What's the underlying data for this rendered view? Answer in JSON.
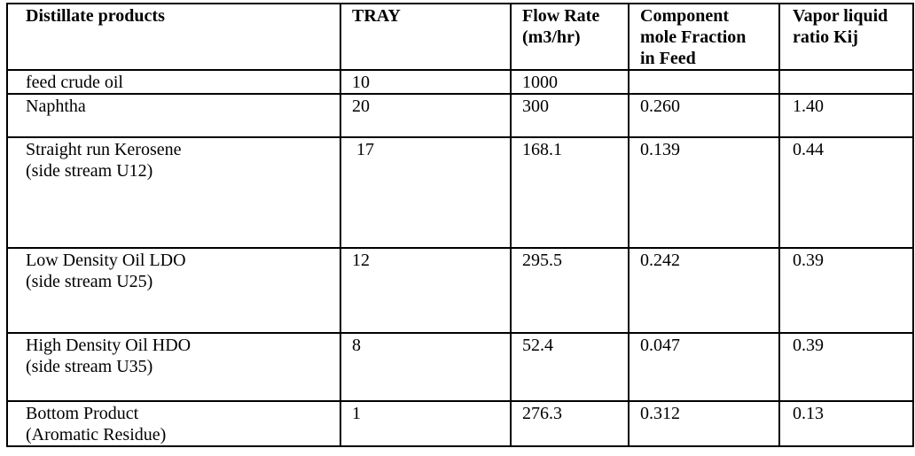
{
  "table": {
    "border_color": "#000000",
    "text_color": "#000000",
    "background_color": "#ffffff",
    "columns": [
      {
        "label": "Distillate products"
      },
      {
        "label": "TRAY"
      },
      {
        "label": "Flow Rate\n(m3/hr)"
      },
      {
        "label": "Component\nmole Fraction\nin Feed"
      },
      {
        "label": "Vapor liquid\nratio Kij"
      }
    ],
    "rows": [
      {
        "product": "feed crude oil",
        "tray": "10",
        "flow_rate": "1000",
        "mole_fraction_in_feed": "",
        "vapor_liquid_ratio_kij": ""
      },
      {
        "product": "Naphtha",
        "tray": "20",
        "flow_rate": "300",
        "mole_fraction_in_feed": "0.260",
        "vapor_liquid_ratio_kij": "1.40"
      },
      {
        "product": "Straight run Kerosene\n(side stream U12)",
        "tray": " 17",
        "flow_rate": "168.1",
        "mole_fraction_in_feed": "0.139",
        "vapor_liquid_ratio_kij": "0.44"
      },
      {
        "product": "Low Density Oil LDO\n(side stream U25)",
        "tray": "12",
        "flow_rate": "295.5",
        "mole_fraction_in_feed": "0.242",
        "vapor_liquid_ratio_kij": "0.39"
      },
      {
        "product": "High Density Oil HDO\n(side stream U35)",
        "tray": "8",
        "flow_rate": "52.4",
        "mole_fraction_in_feed": "0.047",
        "vapor_liquid_ratio_kij": "0.39"
      },
      {
        "product": "Bottom Product\n(Aromatic Residue)",
        "tray": "1",
        "flow_rate": "276.3",
        "mole_fraction_in_feed": "0.312",
        "vapor_liquid_ratio_kij": "0.13"
      }
    ]
  }
}
